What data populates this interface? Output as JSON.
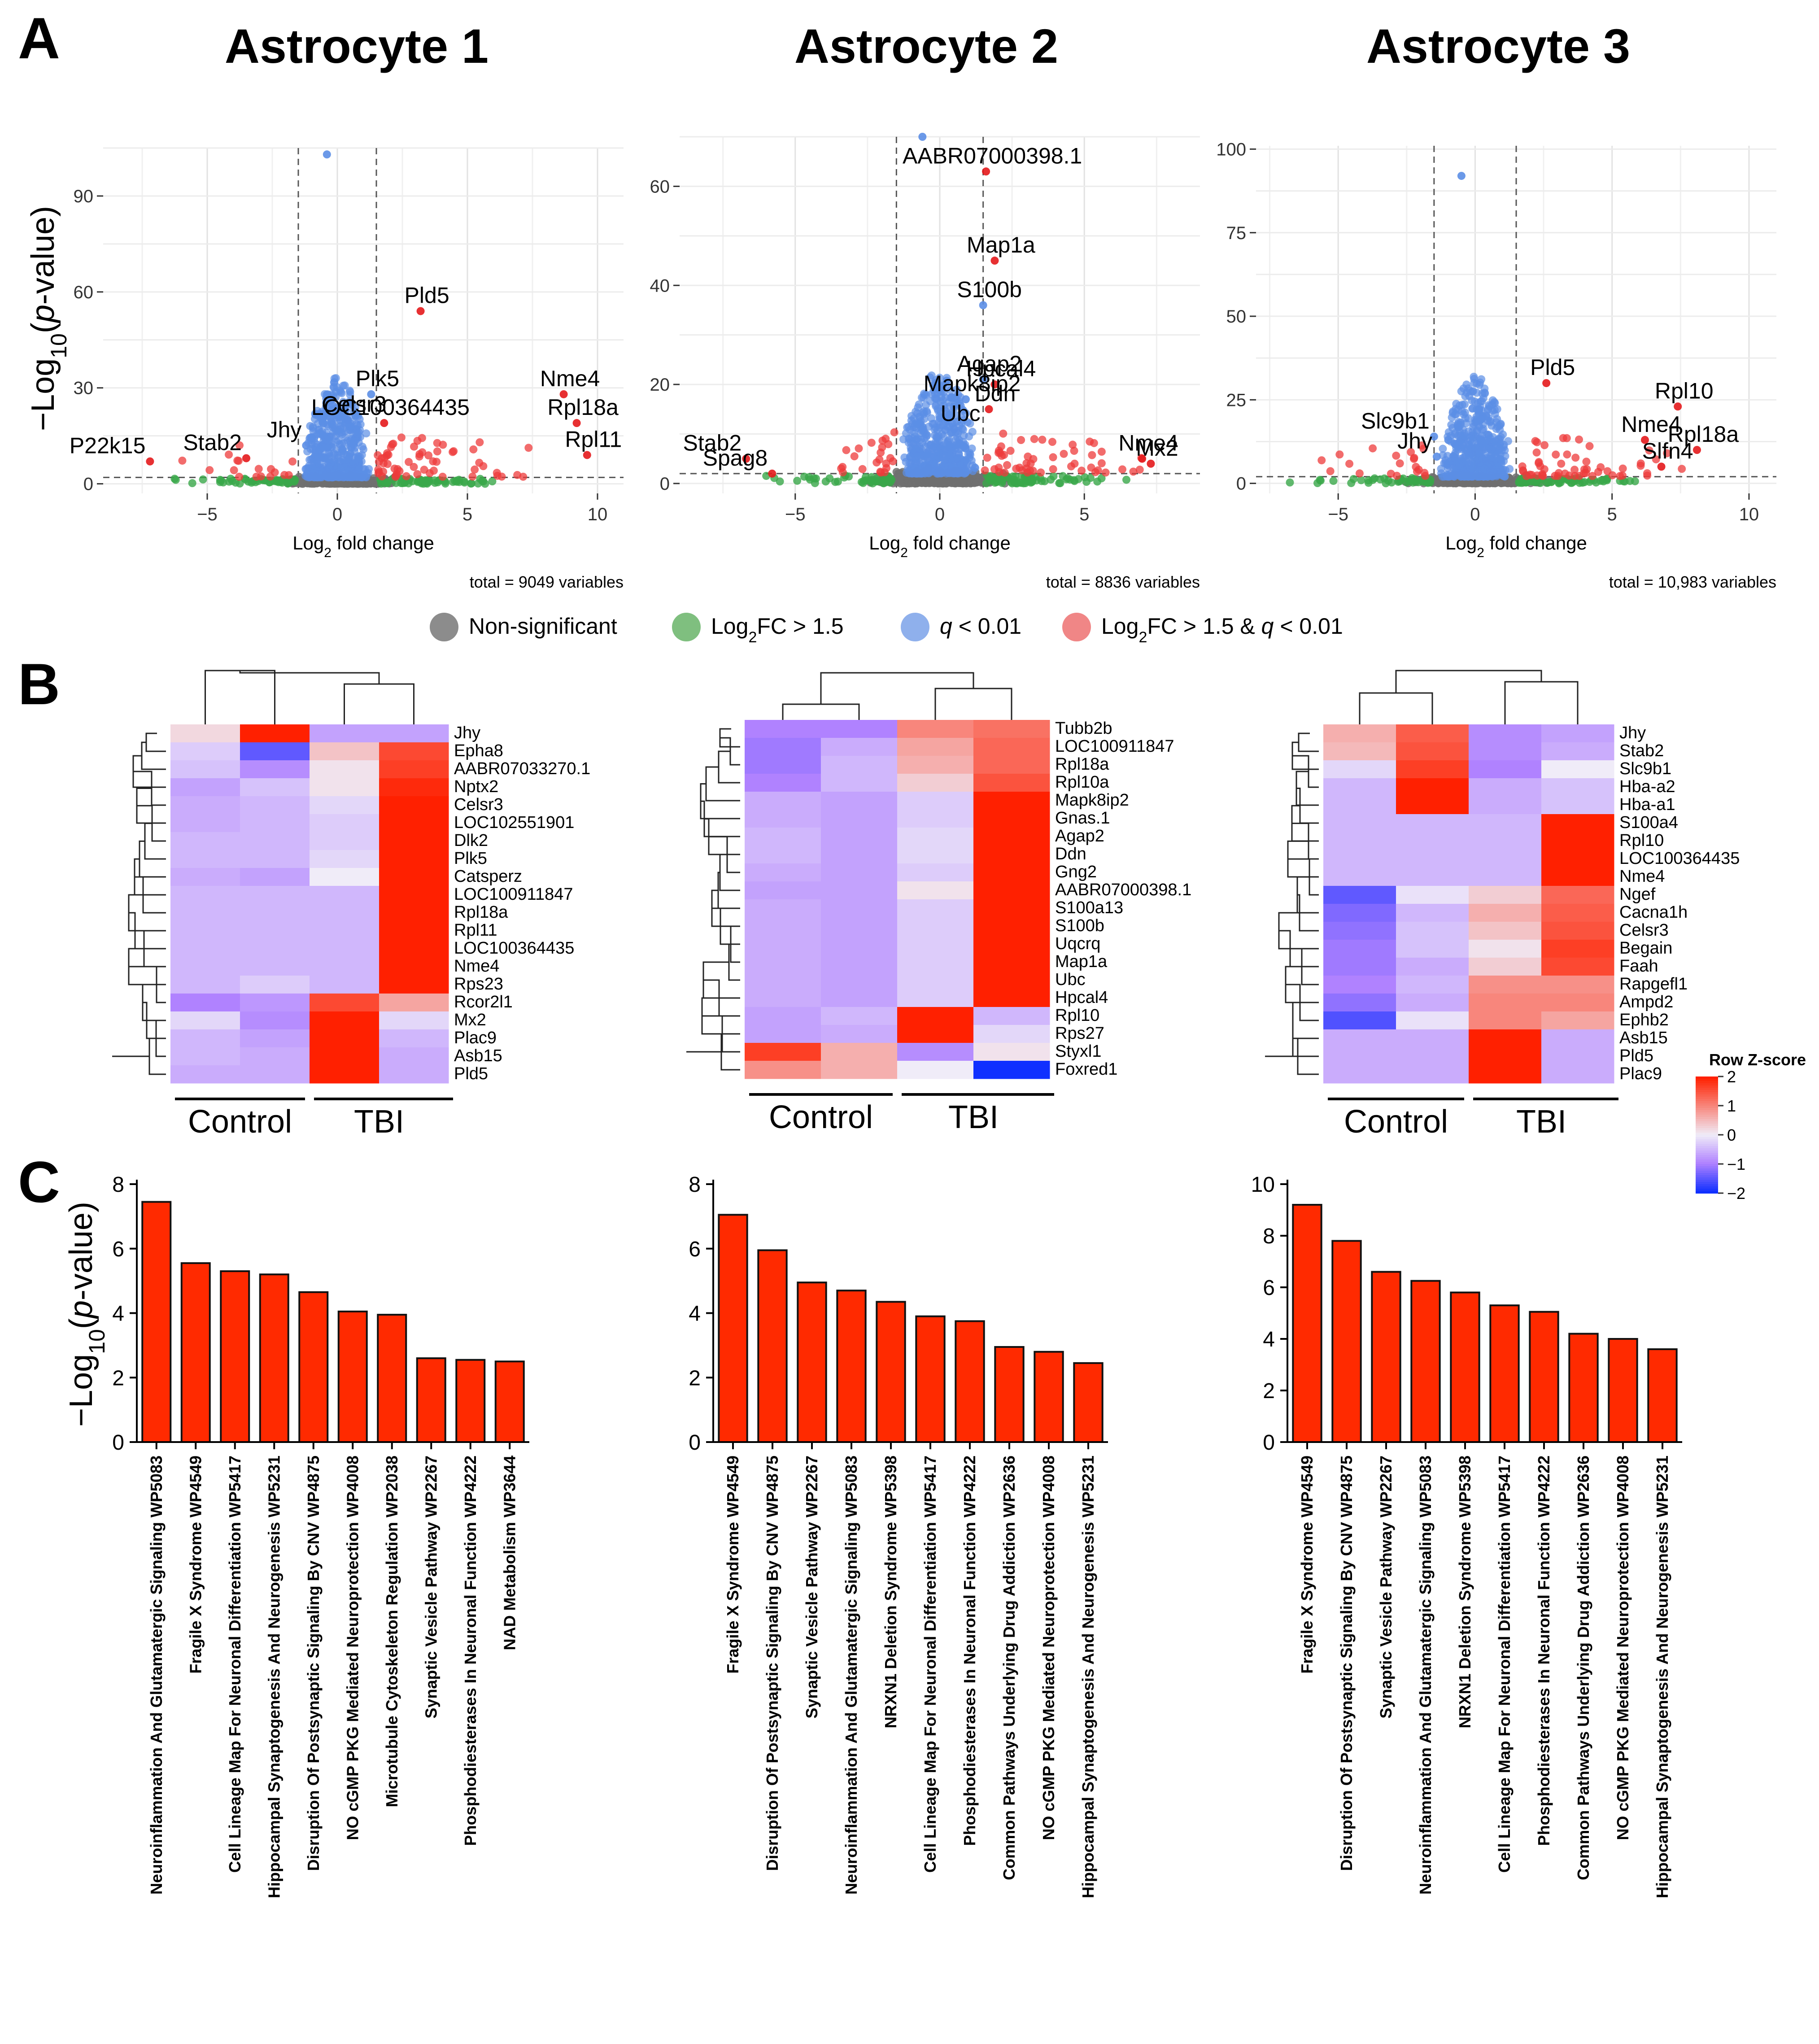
{
  "panel_labels": {
    "a": "A",
    "b": "B",
    "c": "C"
  },
  "titles": [
    "Astrocyte 1",
    "Astrocyte 2",
    "Astrocyte 3"
  ],
  "volcano_axis": {
    "ylabel_prefix": "−Log",
    "ylabel_sub": "10",
    "ylabel_open": "(",
    "ylabel_p": "p",
    "ylabel_rest": "-value)",
    "xlabel_prefix": "Log",
    "xlabel_sub": "2",
    "xlabel_rest": " fold change"
  },
  "legend": {
    "items": [
      {
        "label_parts": [
          "Non-significant"
        ],
        "color": "#8c8c8c"
      },
      {
        "label_parts": [
          "Log",
          "2",
          "FC > 1.5"
        ],
        "color": "#7fbf7f"
      },
      {
        "label_parts": [
          "q",
          " < 0.01"
        ],
        "color": "#8fb0ec"
      },
      {
        "label_parts": [
          "Log",
          "2",
          "FC > 1.5 & ",
          "q",
          " < 0.01"
        ],
        "color": "#f08686"
      }
    ]
  },
  "heatmap_legend": {
    "title": "Row Z-score",
    "ticks": [
      "2",
      "1",
      "0",
      "−1",
      "−2"
    ]
  },
  "group_labels": {
    "control": "Control",
    "tbi": "TBI"
  },
  "enrichment_axis": {
    "ylabel_prefix": "−Log",
    "ylabel_sub": "10",
    "ylabel_open": "(",
    "ylabel_p": "p",
    "ylabel_rest": "-value)"
  },
  "chart_data": [
    {
      "type": "scatter",
      "panel": "A1",
      "title": "Astrocyte 1",
      "xlim": [
        -9,
        11
      ],
      "ylim": [
        -3,
        105
      ],
      "xticks": [
        "−5",
        "0",
        "5",
        "10"
      ],
      "xtick_values": [
        -5,
        0,
        5,
        10
      ],
      "yticks": [
        "0",
        "30",
        "60",
        "90"
      ],
      "ytick_values": [
        0,
        30,
        60,
        90
      ],
      "thresholds": {
        "fc": 1.5,
        "p": 2
      },
      "total": "total = 9049 variables",
      "highlights": [
        {
          "label": "Pld5",
          "x": 3.2,
          "y": 54
        },
        {
          "label": "Plk5",
          "x": 1.3,
          "y": 28
        },
        {
          "label": "Celsr3",
          "x": 0.4,
          "y": 20
        },
        {
          "label": "LOC100364435",
          "x": 1.8,
          "y": 19
        },
        {
          "label": "Jhy",
          "x": -1.2,
          "y": 12
        },
        {
          "label": "Nme4",
          "x": 8.7,
          "y": 28
        },
        {
          "label": "Rpl18a",
          "x": 9.2,
          "y": 19
        },
        {
          "label": "Rpl11",
          "x": 9.6,
          "y": 9
        },
        {
          "label": "P22k15",
          "x": -7.2,
          "y": 7
        },
        {
          "label": "Stab2",
          "x": -3.5,
          "y": 8
        },
        {
          "label": "",
          "x": -0.4,
          "y": 103
        }
      ]
    },
    {
      "type": "scatter",
      "panel": "A2",
      "title": "Astrocyte 2",
      "xlim": [
        -9,
        9
      ],
      "ylim": [
        -2,
        70
      ],
      "xticks": [
        "−5",
        "0",
        "5"
      ],
      "xtick_values": [
        -5,
        0,
        5
      ],
      "yticks": [
        "0",
        "20",
        "40",
        "60"
      ],
      "ytick_values": [
        0,
        20,
        40,
        60
      ],
      "thresholds": {
        "fc": 1.5,
        "p": 2
      },
      "total": "total = 8836 variables",
      "highlights": [
        {
          "label": "AABR07000398.1",
          "x": 1.6,
          "y": 63
        },
        {
          "label": "Map1a",
          "x": 1.9,
          "y": 45
        },
        {
          "label": "S100b",
          "x": 1.5,
          "y": 36
        },
        {
          "label": "Agap2",
          "x": 1.5,
          "y": 21
        },
        {
          "label": "Hpcal4",
          "x": 1.9,
          "y": 20
        },
        {
          "label": "Mapk8ip2",
          "x": 0.9,
          "y": 17
        },
        {
          "label": "Ddn",
          "x": 1.7,
          "y": 15
        },
        {
          "label": "Ubc",
          "x": 0.5,
          "y": 11
        },
        {
          "label": "Nme4",
          "x": 7.0,
          "y": 5
        },
        {
          "label": "Mx2",
          "x": 7.3,
          "y": 4
        },
        {
          "label": "Stab2",
          "x": -6.7,
          "y": 5
        },
        {
          "label": "Spag8",
          "x": -5.8,
          "y": 2
        },
        {
          "label": "",
          "x": -0.6,
          "y": 70
        }
      ]
    },
    {
      "type": "scatter",
      "panel": "A3",
      "title": "Astrocyte 3",
      "xlim": [
        -8,
        11
      ],
      "ylim": [
        -3,
        101
      ],
      "xticks": [
        "−5",
        "0",
        "5",
        "10"
      ],
      "xtick_values": [
        -5,
        0,
        5,
        10
      ],
      "yticks": [
        "0",
        "25",
        "50",
        "75",
        "100"
      ],
      "ytick_values": [
        0,
        25,
        50,
        75,
        100
      ],
      "thresholds": {
        "fc": 1.5,
        "p": 2
      },
      "total": "total = 10,983 variables",
      "highlights": [
        {
          "label": "Slc9b1",
          "x": -1.5,
          "y": 14
        },
        {
          "label": "Jhy",
          "x": -1.4,
          "y": 8
        },
        {
          "label": "Pld5",
          "x": 2.6,
          "y": 30
        },
        {
          "label": "Nme4",
          "x": 6.2,
          "y": 13
        },
        {
          "label": "Rpl10",
          "x": 7.4,
          "y": 23
        },
        {
          "label": "Rpl18a",
          "x": 8.1,
          "y": 10
        },
        {
          "label": "Slfn4",
          "x": 6.8,
          "y": 5
        },
        {
          "label": "",
          "x": -0.5,
          "y": 92
        }
      ]
    },
    {
      "type": "heatmap",
      "panel": "B1",
      "genes": [
        "Jhy",
        "Epha8",
        "AABR07033270.1",
        "Nptx2",
        "Celsr3",
        "LOC102551901",
        "Dlk2",
        "Plk5",
        "Catsperz",
        "LOC100911847",
        "Rpl18a",
        "Rpl11",
        "LOC100364435",
        "Nme4",
        "Rps23",
        "Rcor2l1",
        "Mx2",
        "Plac9",
        "Asb15",
        "Pld5"
      ],
      "values": [
        [
          0.2,
          2.0,
          -0.7,
          -0.7
        ],
        [
          -0.3,
          -1.5,
          0.4,
          1.6
        ],
        [
          -0.4,
          -0.9,
          0.1,
          1.7
        ],
        [
          -0.7,
          -0.4,
          0.1,
          1.9
        ],
        [
          -0.6,
          -0.5,
          -0.2,
          2.0
        ],
        [
          -0.6,
          -0.5,
          -0.3,
          2.0
        ],
        [
          -0.5,
          -0.5,
          -0.3,
          2.0
        ],
        [
          -0.5,
          -0.5,
          -0.2,
          2.0
        ],
        [
          -0.6,
          -0.7,
          0.0,
          2.0
        ],
        [
          -0.5,
          -0.5,
          -0.5,
          2.0
        ],
        [
          -0.5,
          -0.5,
          -0.5,
          2.0
        ],
        [
          -0.5,
          -0.5,
          -0.5,
          2.0
        ],
        [
          -0.5,
          -0.5,
          -0.5,
          2.0
        ],
        [
          -0.5,
          -0.5,
          -0.5,
          2.0
        ],
        [
          -0.5,
          -0.3,
          -0.5,
          2.0
        ],
        [
          -1.0,
          -0.8,
          1.6,
          0.7
        ],
        [
          -0.2,
          -0.9,
          2.0,
          -0.2
        ],
        [
          -0.5,
          -0.7,
          2.0,
          -0.5
        ],
        [
          -0.5,
          -0.6,
          2.0,
          -0.6
        ],
        [
          -0.6,
          -0.6,
          2.0,
          -0.6
        ]
      ]
    },
    {
      "type": "heatmap",
      "panel": "B2",
      "genes": [
        "Tubb2b",
        "LOC100911847",
        "Rpl18a",
        "Rpl10a",
        "Mapk8ip2",
        "Gnas.1",
        "Agap2",
        "Ddn",
        "Gng2",
        "AABR07000398.1",
        "S100a13",
        "S100b",
        "Uqcrq",
        "Map1a",
        "Ubc",
        "Hpcal4",
        "Rpl10",
        "Rps27",
        "Styxl1",
        "Foxred1"
      ],
      "values": [
        [
          -1.0,
          -1.0,
          1.0,
          1.2
        ],
        [
          -1.1,
          -0.6,
          0.7,
          1.3
        ],
        [
          -1.1,
          -0.5,
          0.6,
          1.3
        ],
        [
          -1.0,
          -0.5,
          0.3,
          1.5
        ],
        [
          -0.6,
          -0.7,
          -0.3,
          2.0
        ],
        [
          -0.6,
          -0.7,
          -0.3,
          2.0
        ],
        [
          -0.5,
          -0.7,
          -0.2,
          2.0
        ],
        [
          -0.5,
          -0.7,
          -0.2,
          2.0
        ],
        [
          -0.6,
          -0.7,
          -0.3,
          2.0
        ],
        [
          -0.7,
          -0.7,
          0.1,
          2.0
        ],
        [
          -0.6,
          -0.7,
          -0.3,
          2.0
        ],
        [
          -0.6,
          -0.7,
          -0.3,
          2.0
        ],
        [
          -0.6,
          -0.7,
          -0.3,
          2.0
        ],
        [
          -0.6,
          -0.7,
          -0.3,
          2.0
        ],
        [
          -0.6,
          -0.7,
          -0.3,
          2.0
        ],
        [
          -0.6,
          -0.7,
          -0.3,
          2.0
        ],
        [
          -0.7,
          -0.5,
          2.0,
          -0.5
        ],
        [
          -0.7,
          -0.6,
          2.0,
          -0.2
        ],
        [
          1.7,
          0.6,
          -0.9,
          0.1
        ],
        [
          0.9,
          0.6,
          0.0,
          -2.0
        ]
      ]
    },
    {
      "type": "heatmap",
      "panel": "B3",
      "genes": [
        "Jhy",
        "Stab2",
        "Slc9b1",
        "Hba-a2",
        "Hba-a1",
        "S100a4",
        "Rpl10",
        "LOC100364435",
        "Nme4",
        "Ngef",
        "Cacna1h",
        "Celsr3",
        "Begain",
        "Faah",
        "Rapgefl1",
        "Ampd2",
        "Ephb2",
        "Asb15",
        "Pld5",
        "Plac9"
      ],
      "values": [
        [
          0.6,
          1.4,
          -0.9,
          -0.7
        ],
        [
          0.5,
          1.5,
          -0.9,
          -0.6
        ],
        [
          -0.2,
          1.7,
          -1.0,
          0.0
        ],
        [
          -0.5,
          2.0,
          -0.6,
          -0.4
        ],
        [
          -0.5,
          2.0,
          -0.6,
          -0.4
        ],
        [
          -0.5,
          -0.5,
          -0.5,
          2.0
        ],
        [
          -0.5,
          -0.5,
          -0.5,
          2.0
        ],
        [
          -0.5,
          -0.5,
          -0.5,
          2.0
        ],
        [
          -0.5,
          -0.5,
          -0.5,
          2.0
        ],
        [
          -1.5,
          -0.1,
          0.3,
          1.3
        ],
        [
          -1.3,
          -0.5,
          0.6,
          1.4
        ],
        [
          -1.2,
          -0.4,
          0.4,
          1.5
        ],
        [
          -1.1,
          -0.4,
          0.1,
          1.7
        ],
        [
          -1.1,
          -0.6,
          0.3,
          1.6
        ],
        [
          -1.0,
          -0.5,
          0.9,
          0.9
        ],
        [
          -1.2,
          -0.6,
          1.0,
          1.0
        ],
        [
          -1.6,
          -0.1,
          1.0,
          0.7
        ],
        [
          -0.6,
          -0.6,
          2.0,
          -0.6
        ],
        [
          -0.6,
          -0.6,
          2.0,
          -0.6
        ],
        [
          -0.6,
          -0.6,
          2.0,
          -0.6
        ]
      ]
    },
    {
      "type": "bar",
      "panel": "C1",
      "ylim": [
        0,
        8
      ],
      "yticks": [
        "0",
        "2",
        "4",
        "6",
        "8"
      ],
      "ytick_values": [
        0,
        2,
        4,
        6,
        8
      ],
      "categories": [
        "Neuroinflammation And Glutamatergic Signaling WP5083",
        "Fragile X Syndrome WP4549",
        "Cell Lineage Map For Neuronal Differentiation WP5417",
        "Hippocampal Synaptogenesis And Neurogenesis WP5231",
        "Disruption Of Postsynaptic Signaling By CNV WP4875",
        "NO cGMP PKG Mediated Neuroprotection WP4008",
        "Microtubule Cytoskeleton Regulation WP2038",
        "Synaptic Vesicle Pathway WP2267",
        "Phosphodiesterases In Neuronal Function WP4222",
        "NAD Metabolism WP3644"
      ],
      "values": [
        7.45,
        5.55,
        5.3,
        5.2,
        4.65,
        4.05,
        3.95,
        2.6,
        2.55,
        2.5
      ]
    },
    {
      "type": "bar",
      "panel": "C2",
      "ylim": [
        0,
        8
      ],
      "yticks": [
        "0",
        "2",
        "4",
        "6",
        "8"
      ],
      "ytick_values": [
        0,
        2,
        4,
        6,
        8
      ],
      "categories": [
        "Fragile X Syndrome WP4549",
        "Disruption Of Postsynaptic Signaling By CNV WP4875",
        "Synaptic Vesicle Pathway WP2267",
        "Neuroinflammation And Glutamatergic Signaling WP5083",
        "NRXN1 Deletion Syndrome WP5398",
        "Cell Lineage Map For Neuronal Differentiation WP5417",
        "Phosphodiesterases In Neuronal Function WP4222",
        "Common Pathways Underlying Drug Addiction WP2636",
        "NO cGMP PKG Mediated Neuroprotection WP4008",
        "Hippocampal Synaptogenesis And Neurogenesis WP5231"
      ],
      "values": [
        7.05,
        5.95,
        4.95,
        4.7,
        4.35,
        3.9,
        3.75,
        2.95,
        2.8,
        2.45
      ]
    },
    {
      "type": "bar",
      "panel": "C3",
      "ylim": [
        0,
        10
      ],
      "yticks": [
        "0",
        "2",
        "4",
        "6",
        "8",
        "10"
      ],
      "ytick_values": [
        0,
        2,
        4,
        6,
        8,
        10
      ],
      "categories": [
        "Fragile X Syndrome WP4549",
        "Disruption Of Postsynaptic Signaling By CNV WP4875",
        "Synaptic Vesicle Pathway WP2267",
        "Neuroinflammation And Glutamatergic Signaling WP5083",
        "NRXN1 Deletion Syndrome WP5398",
        "Cell Lineage Map For Neuronal Differentiation WP5417",
        "Phosphodiesterases In Neuronal Function WP4222",
        "Common Pathways Underlying Drug Addiction WP2636",
        "NO cGMP PKG Mediated Neuroprotection WP4008",
        "Hippocampal Synaptogenesis And Neurogenesis WP5231"
      ],
      "values": [
        9.2,
        7.8,
        6.6,
        6.25,
        5.8,
        5.3,
        5.05,
        4.2,
        4.0,
        3.6
      ]
    }
  ]
}
